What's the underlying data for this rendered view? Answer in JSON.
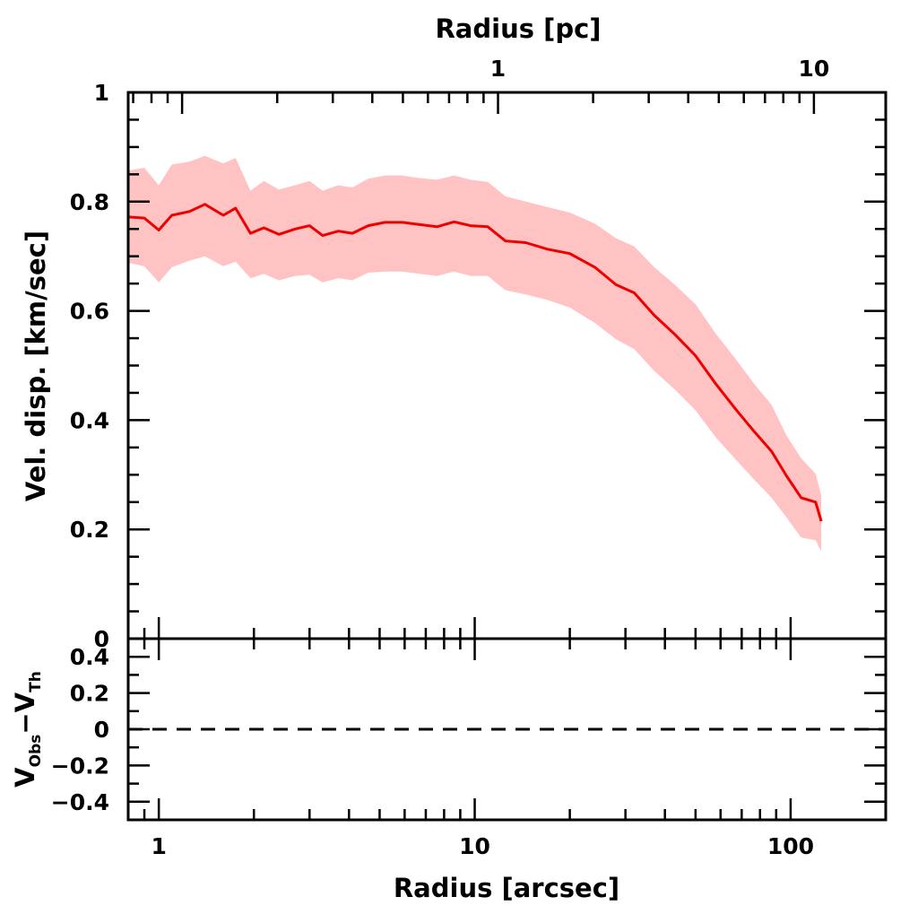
{
  "chart_data": [
    {
      "type": "line",
      "panel": "main",
      "xlabel": "Radius [arcsec]",
      "ylabel": "Vel. disp. [km/sec]",
      "top_xlabel": "Radius [pc]",
      "xscale": "log",
      "xlim": [
        0.8,
        200
      ],
      "ylim": [
        0,
        1
      ],
      "xticks": [
        1,
        10,
        100
      ],
      "xtick_labels": [
        "1",
        "10",
        "100"
      ],
      "yticks": [
        0,
        0.2,
        0.4,
        0.6,
        0.8,
        1
      ],
      "ytick_labels": [
        "0",
        "0.2",
        "0.4",
        "0.6",
        "0.8",
        "1"
      ],
      "top_xticks": [
        1,
        10
      ],
      "top_xtick_labels": [
        "1",
        "10"
      ],
      "top_axis_arcsec_per_pc": 11.85,
      "series": [
        {
          "name": "Velocity dispersion",
          "color": "#ee0000",
          "band_color": "#ffc3c3",
          "x": [
            0.8,
            0.9,
            1.0,
            1.1,
            1.25,
            1.4,
            1.6,
            1.75,
            1.95,
            2.15,
            2.4,
            2.7,
            3.0,
            3.3,
            3.7,
            4.1,
            4.6,
            5.2,
            5.9,
            6.7,
            7.6,
            8.6,
            9.7,
            11,
            12.5,
            14.5,
            17,
            20,
            24,
            28,
            32,
            37,
            43,
            50,
            58,
            67,
            77,
            87,
            97,
            108,
            120,
            125
          ],
          "y": [
            0.772,
            0.77,
            0.748,
            0.775,
            0.782,
            0.795,
            0.775,
            0.788,
            0.742,
            0.752,
            0.74,
            0.75,
            0.756,
            0.738,
            0.746,
            0.742,
            0.756,
            0.762,
            0.762,
            0.758,
            0.754,
            0.763,
            0.756,
            0.754,
            0.728,
            0.725,
            0.713,
            0.705,
            0.68,
            0.648,
            0.633,
            0.592,
            0.557,
            0.518,
            0.466,
            0.42,
            0.378,
            0.343,
            0.298,
            0.258,
            0.25,
            0.215
          ],
          "y_low": [
            0.688,
            0.682,
            0.652,
            0.68,
            0.692,
            0.7,
            0.682,
            0.69,
            0.66,
            0.668,
            0.656,
            0.664,
            0.666,
            0.652,
            0.66,
            0.656,
            0.67,
            0.672,
            0.672,
            0.668,
            0.664,
            0.672,
            0.664,
            0.664,
            0.638,
            0.63,
            0.62,
            0.606,
            0.578,
            0.548,
            0.53,
            0.49,
            0.456,
            0.418,
            0.368,
            0.328,
            0.29,
            0.258,
            0.222,
            0.185,
            0.18,
            0.16
          ],
          "y_high": [
            0.857,
            0.862,
            0.83,
            0.868,
            0.873,
            0.884,
            0.87,
            0.88,
            0.82,
            0.838,
            0.822,
            0.83,
            0.838,
            0.82,
            0.83,
            0.826,
            0.842,
            0.848,
            0.848,
            0.843,
            0.84,
            0.848,
            0.84,
            0.836,
            0.81,
            0.8,
            0.79,
            0.78,
            0.76,
            0.733,
            0.718,
            0.68,
            0.648,
            0.612,
            0.558,
            0.512,
            0.465,
            0.428,
            0.372,
            0.33,
            0.302,
            0.262
          ]
        }
      ]
    },
    {
      "type": "line",
      "panel": "residual",
      "xlabel": "Radius [arcsec]",
      "ylabel_main": "V",
      "ylabel_sub1": "Obs",
      "ylabel_mid": "−V",
      "ylabel_sub2": "Th",
      "xscale": "log",
      "xlim": [
        0.8,
        200
      ],
      "ylim": [
        -0.5,
        0.5
      ],
      "yticks": [
        -0.4,
        -0.2,
        0,
        0.2,
        0.4
      ],
      "ytick_labels": [
        "−0.4",
        "−0.2",
        "0",
        "0.2",
        "0.4"
      ],
      "series": [
        {
          "name": "zero line",
          "style": "dashed",
          "color": "#000000",
          "y_constant": 0
        }
      ]
    }
  ]
}
